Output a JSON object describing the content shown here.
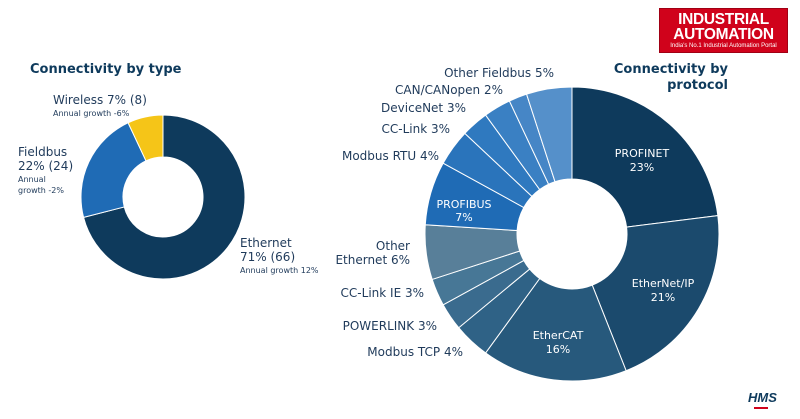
{
  "logo": {
    "line1": "INDUSTRIAL",
    "line2": "AUTOMATION",
    "tagline": "India's No.1 Industrial Automation Portal"
  },
  "footer_logo": "HMS",
  "chart_data": [
    {
      "type": "pie",
      "title": "Connectivity by type",
      "slices": [
        {
          "label": "Ethernet",
          "value": 71,
          "count": 66,
          "growth_label": "Annual growth 12%",
          "color": "#0e3a5c"
        },
        {
          "label": "Fieldbus",
          "value": 22,
          "count": 24,
          "growth_label": "Annual growth -2%",
          "color": "#1f6bb5"
        },
        {
          "label": "Wireless",
          "value": 7,
          "count": 8,
          "growth_label": "Annual growth -6%",
          "color": "#f5c518"
        }
      ],
      "labels": {
        "ethernet_l1": "Ethernet",
        "ethernet_l2": "71% (66)",
        "ethernet_l3": "Annual growth 12%",
        "fieldbus_l1": "Fieldbus",
        "fieldbus_l2": "22% (24)",
        "fieldbus_l3": "Annual",
        "fieldbus_l4": "growth -2%",
        "wireless_l1": "Wireless 7% (8)",
        "wireless_l2": "Annual growth -6%"
      }
    },
    {
      "type": "pie",
      "title_l1": "Connectivity by",
      "title_l2": "protocol",
      "slices": [
        {
          "label": "PROFINET",
          "value": 23,
          "color": "#0e3a5c"
        },
        {
          "label": "EtherNet/IP",
          "value": 21,
          "color": "#1b4a6d"
        },
        {
          "label": "EtherCAT",
          "value": 16,
          "color": "#27597c"
        },
        {
          "label": "Modbus TCP",
          "value": 4,
          "color": "#2f6286"
        },
        {
          "label": "POWERLINK",
          "value": 3,
          "color": "#3a6b8e"
        },
        {
          "label": "CC-Link IE",
          "value": 3,
          "color": "#477796"
        },
        {
          "label": "Other Ethernet",
          "value": 6,
          "color": "#587f99"
        },
        {
          "label": "PROFIBUS",
          "value": 7,
          "color": "#1f6bb5"
        },
        {
          "label": "Modbus RTU",
          "value": 4,
          "color": "#2a74bb"
        },
        {
          "label": "CC-Link",
          "value": 3,
          "color": "#2f79bf"
        },
        {
          "label": "DeviceNet",
          "value": 3,
          "color": "#3a80c3"
        },
        {
          "label": "CAN/CANopen",
          "value": 2,
          "color": "#4686c6"
        },
        {
          "label": "Other Fieldbus",
          "value": 5,
          "color": "#5590ca"
        }
      ],
      "labels": {
        "profinet_l1": "PROFINET",
        "profinet_l2": "23%",
        "ethernetip_l1": "EtherNet/IP",
        "ethernetip_l2": "21%",
        "ethercat_l1": "EtherCAT",
        "ethercat_l2": "16%",
        "profibus_l1": "PROFIBUS",
        "profibus_l2": "7%",
        "modbus_tcp": "Modbus TCP 4%",
        "powerlink": "POWERLINK 3%",
        "cclink_ie": "CC-Link IE 3%",
        "other_eth_l1": "Other",
        "other_eth_l2": "Ethernet 6%",
        "modbus_rtu": "Modbus RTU 4%",
        "cclink": "CC-Link 3%",
        "devicenet": "DeviceNet 3%",
        "canopen": "CAN/CANopen 2%",
        "other_fb": "Other Fieldbus 5%"
      }
    }
  ]
}
